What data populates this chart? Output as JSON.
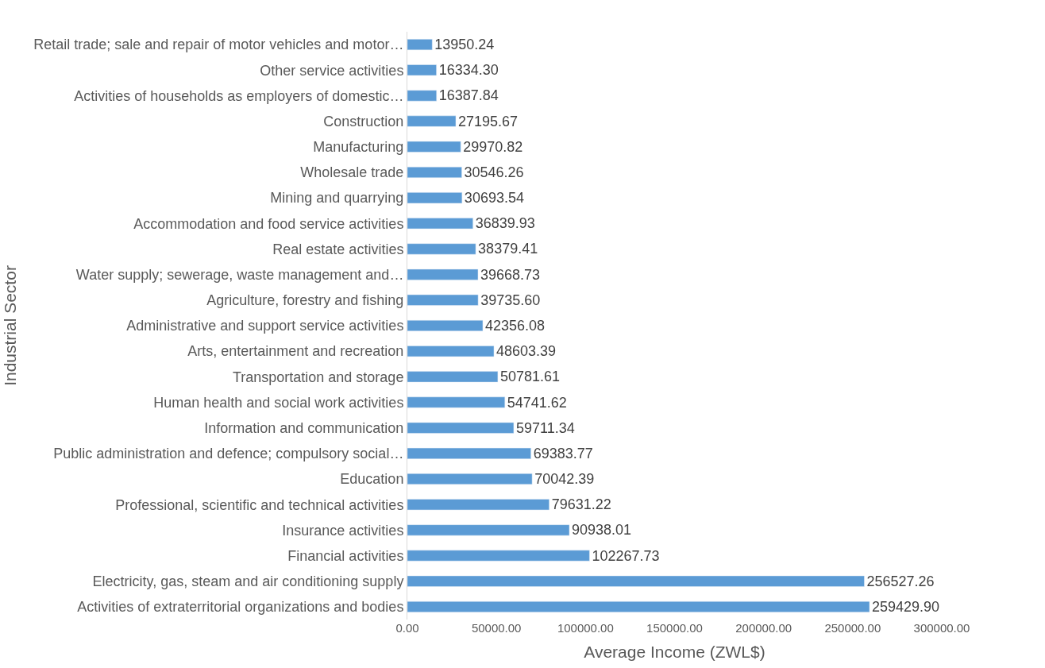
{
  "chart_data": {
    "type": "bar",
    "orientation": "horizontal",
    "xlabel": "Average Income (ZWL$)",
    "ylabel": "Industrial Sector",
    "categories": [
      "Retail trade; sale and repair of motor vehicles and motor…",
      "Other service activities",
      "Activities of households as employers of domestic…",
      "Construction",
      "Manufacturing",
      "Wholesale trade",
      "Mining and quarrying",
      "Accommodation and food service activities",
      "Real estate activities",
      "Water supply; sewerage, waste management and…",
      "Agriculture, forestry and fishing",
      "Administrative and support service activities",
      "Arts, entertainment and recreation",
      "Transportation and storage",
      "Human health and social work activities",
      "Information and communication",
      "Public administration and defence; compulsory social…",
      "Education",
      "Professional, scientific and technical activities",
      "Insurance activities",
      "Financial activities",
      "Electricity, gas, steam and air conditioning supply",
      "Activities of extraterritorial organizations and bodies"
    ],
    "values": [
      13950.24,
      16334.3,
      16387.84,
      27195.67,
      29970.82,
      30546.26,
      30693.54,
      36839.93,
      38379.41,
      39668.73,
      39735.6,
      42356.08,
      48603.39,
      50781.61,
      54741.62,
      59711.34,
      69383.77,
      70042.39,
      79631.22,
      90938.01,
      102267.73,
      256527.26,
      259429.9
    ],
    "value_labels": [
      "13950.24",
      "16334.30",
      "16387.84",
      "27195.67",
      "29970.82",
      "30546.26",
      "30693.54",
      "36839.93",
      "38379.41",
      "39668.73",
      "39735.60",
      "42356.08",
      "48603.39",
      "50781.61",
      "54741.62",
      "59711.34",
      "69383.77",
      "70042.39",
      "79631.22",
      "90938.01",
      "102267.73",
      "256527.26",
      "259429.90"
    ],
    "color": "#5b9bd5",
    "xlim": [
      0,
      300000
    ],
    "xticks": [
      {
        "value": 0,
        "label": "0.00"
      },
      {
        "value": 50000,
        "label": "50000.00"
      },
      {
        "value": 100000,
        "label": "100000.00"
      },
      {
        "value": 150000,
        "label": "150000.00"
      },
      {
        "value": 200000,
        "label": "200000.00"
      },
      {
        "value": 250000,
        "label": "250000.00"
      },
      {
        "value": 300000,
        "label": "300000.00"
      }
    ],
    "legend": false
  }
}
